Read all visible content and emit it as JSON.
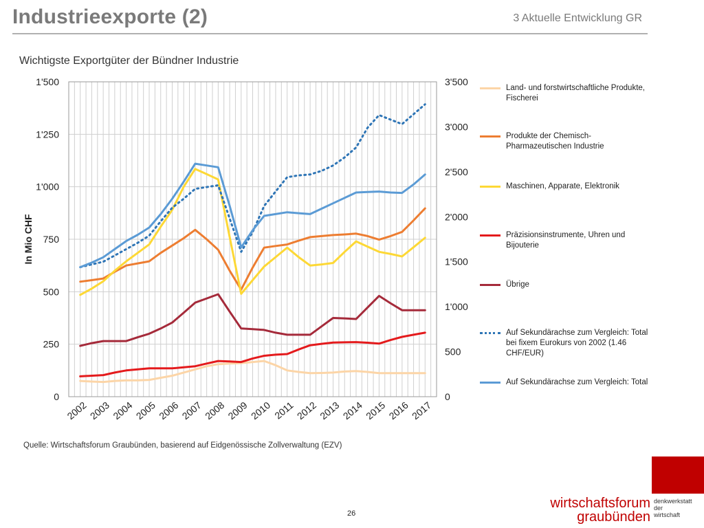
{
  "header": {
    "title": "Industrieexporte (2)",
    "section": "3 Aktuelle Entwicklung GR"
  },
  "chart_data": {
    "type": "line",
    "title": "Wichtigste Exportgüter der Bündner Industrie",
    "ylabel": "In Mio CHF",
    "ylim": [
      0,
      1500
    ],
    "y2lim": [
      0,
      3500
    ],
    "yticks": [
      "0",
      "250",
      "500",
      "750",
      "1'000",
      "1'250",
      "1'500"
    ],
    "y2ticks": [
      "0",
      "500",
      "1'000",
      "1'500",
      "2'000",
      "2'500",
      "3'000",
      "3'500"
    ],
    "categories": [
      "2002",
      "2003",
      "2004",
      "2005",
      "2006",
      "2007",
      "2008",
      "2009",
      "2010",
      "2011",
      "2012",
      "2013",
      "2014",
      "2015",
      "2016",
      "2017"
    ],
    "x": [
      2002.5,
      2003,
      2003.5,
      2004,
      2004.5,
      2005,
      2005.5,
      2006,
      2006.5,
      2007,
      2007.5,
      2008,
      2008.5,
      2009,
      2009.5,
      2010,
      2010.5,
      2011,
      2011.5,
      2012,
      2012.5,
      2013,
      2013.5,
      2014,
      2014.5,
      2015,
      2015.5,
      2016,
      2016.5,
      2017,
      2017.5
    ],
    "grid": true,
    "legend_position": "right",
    "series": [
      {
        "name": "Land- und forstwirtschaftliche Produkte, Fischerei",
        "axis": "primary",
        "color": "#fcd5a7",
        "dash": false,
        "values": [
          75,
          72,
          70,
          75,
          78,
          78,
          80,
          90,
          100,
          115,
          130,
          145,
          155,
          158,
          160,
          165,
          170,
          150,
          125,
          118,
          112,
          113,
          115,
          120,
          122,
          118,
          112,
          112,
          112,
          112,
          112
        ]
      },
      {
        "name": "Produkte der Chemisch-Pharmazeutischen Industrie",
        "axis": "primary",
        "color": "#ed7d31",
        "dash": false,
        "values": [
          548,
          555,
          563,
          595,
          625,
          635,
          645,
          685,
          720,
          755,
          795,
          750,
          700,
          600,
          510,
          615,
          710,
          718,
          725,
          743,
          760,
          765,
          770,
          773,
          777,
          765,
          748,
          765,
          785,
          840,
          897
        ]
      },
      {
        "name": "Maschinen, Apparate, Elektronik",
        "axis": "primary",
        "color": "#fdd835",
        "dash": false,
        "values": [
          485,
          515,
          550,
          600,
          645,
          685,
          725,
          810,
          890,
          1000,
          1085,
          1060,
          1035,
          760,
          490,
          555,
          620,
          665,
          710,
          665,
          625,
          630,
          637,
          690,
          740,
          715,
          690,
          680,
          668,
          712,
          757
        ]
      },
      {
        "name": "Präzisionsinstrumente, Uhren und Bijouterie",
        "axis": "primary",
        "color": "#e41a1c",
        "dash": false,
        "values": [
          97,
          100,
          103,
          115,
          125,
          130,
          135,
          135,
          135,
          140,
          145,
          158,
          170,
          168,
          165,
          182,
          195,
          200,
          203,
          225,
          245,
          252,
          258,
          259,
          260,
          257,
          253,
          270,
          285,
          295,
          305
        ]
      },
      {
        "name": "Übrige",
        "axis": "primary",
        "color": "#a52a3a",
        "dash": false,
        "values": [
          242,
          255,
          265,
          265,
          265,
          283,
          300,
          325,
          353,
          400,
          448,
          468,
          488,
          405,
          325,
          322,
          318,
          305,
          295,
          295,
          295,
          335,
          375,
          373,
          370,
          425,
          480,
          445,
          412,
          412,
          412
        ]
      },
      {
        "name": "Auf Sekundärachse zum Vergleich: Total bei fixem Eurokurs von 2002 (1.46 CHF/EUR)",
        "axis": "secondary",
        "color": "#2e75b6",
        "dash": true,
        "values": [
          1440,
          1470,
          1500,
          1570,
          1640,
          1710,
          1790,
          1950,
          2100,
          2200,
          2310,
          2330,
          2350,
          1980,
          1610,
          1830,
          2120,
          2280,
          2440,
          2460,
          2470,
          2510,
          2570,
          2660,
          2770,
          2990,
          3130,
          3080,
          3030,
          3140,
          3250
        ]
      },
      {
        "name": "Auf Sekundärachse zum Vergleich: Total",
        "axis": "secondary",
        "color": "#5b9bd5",
        "dash": false,
        "values": [
          1440,
          1490,
          1550,
          1640,
          1730,
          1800,
          1880,
          2030,
          2200,
          2390,
          2590,
          2570,
          2550,
          2120,
          1660,
          1850,
          2010,
          2030,
          2050,
          2040,
          2030,
          2090,
          2150,
          2210,
          2270,
          2275,
          2280,
          2270,
          2265,
          2360,
          2470
        ]
      }
    ]
  },
  "footer": {
    "source": "Quelle: Wirtschaftsforum Graubünden, basierend auf Eidgenössische Zollverwaltung (EZV)",
    "page_number": "26",
    "logo_line1": "wirtschaftsforum",
    "logo_line2": "graubünden",
    "logo_side1": "denkwerkstatt",
    "logo_side2": "der",
    "logo_side3": "wirtschaft"
  }
}
